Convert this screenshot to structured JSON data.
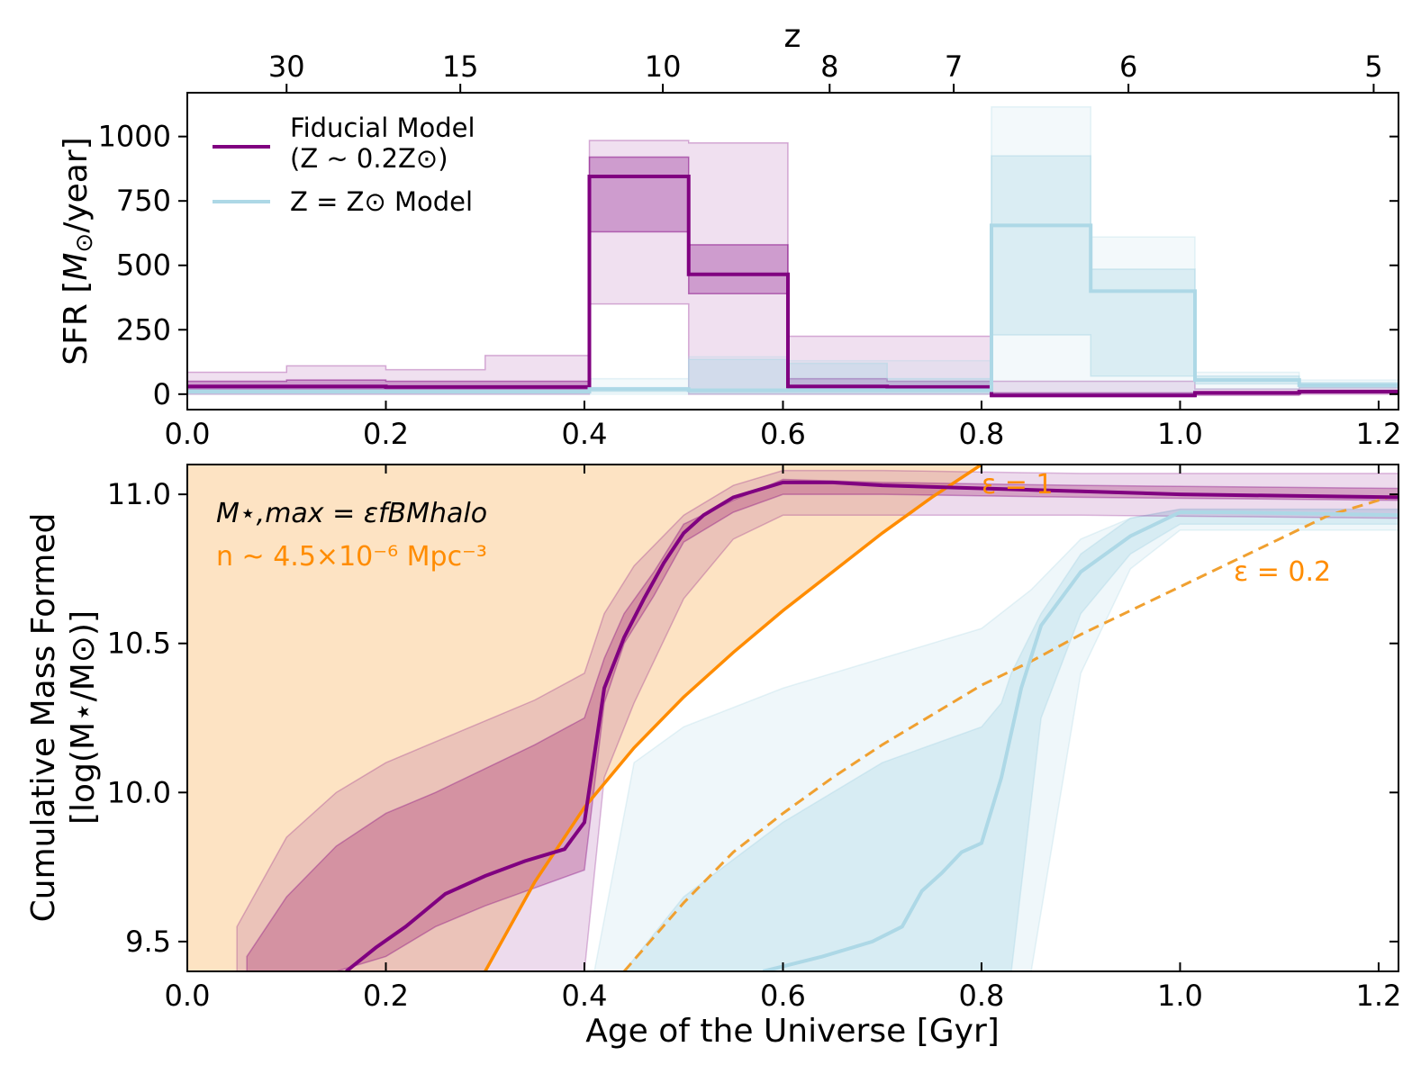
{
  "chart_data": [
    {
      "type": "line",
      "panel": "top",
      "ylabel": "SFR [M⊙/year]",
      "ylabel_parts": {
        "prefix": "SFR [",
        "var": "M",
        "sub": "⊙",
        "suffix": "/year]"
      },
      "xlim": [
        0.0,
        1.22
      ],
      "ylim": [
        -60,
        1170
      ],
      "x_ticks": [
        0.0,
        0.2,
        0.4,
        0.6,
        0.8,
        1.0,
        1.2
      ],
      "x_tick_labels": [
        "0.0",
        "0.2",
        "0.4",
        "0.6",
        "0.8",
        "1.0",
        "1.2"
      ],
      "y_ticks": [
        0,
        250,
        500,
        750,
        1000
      ],
      "y_tick_labels": [
        "0",
        "250",
        "500",
        "750",
        "1000"
      ],
      "top_axis": {
        "label": "z",
        "ticks_age_gyr": [
          0.1,
          0.275,
          0.479,
          0.647,
          0.772,
          0.948,
          1.195
        ],
        "tick_labels": [
          "30",
          "15",
          "10",
          "8",
          "7",
          "6",
          "5"
        ]
      },
      "legend": [
        {
          "label_line1": "Fiducial Model",
          "label_line2": "(Z ~ 0.2Z⊙)",
          "color": "#800080"
        },
        {
          "label_line1": "Z = Z⊙ Model",
          "color": "#add8e6"
        }
      ],
      "bin_edges": [
        0.0,
        0.1,
        0.2,
        0.3,
        0.405,
        0.505,
        0.605,
        0.705,
        0.81,
        0.91,
        1.015,
        1.12,
        1.22
      ],
      "series": [
        {
          "name": "Fiducial Model",
          "color": "#800080",
          "median": [
            30,
            30,
            28,
            28,
            845,
            465,
            30,
            28,
            -5,
            -5,
            5,
            10
          ],
          "inner_band": {
            "low": [
              20,
              20,
              18,
              18,
              630,
              390,
              20,
              18,
              -8,
              -8,
              0,
              5
            ],
            "high": [
              50,
              55,
              50,
              50,
              920,
              580,
              60,
              50,
              5,
              5,
              10,
              15
            ]
          },
          "outer_band": {
            "low": [
              0,
              0,
              0,
              0,
              350,
              0,
              0,
              0,
              -10,
              -10,
              -5,
              0
            ],
            "high": [
              85,
              110,
              95,
              150,
              985,
              975,
              225,
              225,
              50,
              50,
              20,
              25
            ]
          }
        },
        {
          "name": "Z = Z⊙ Model",
          "color": "#add8e6",
          "median": [
            10,
            10,
            10,
            10,
            20,
            15,
            15,
            15,
            655,
            400,
            55,
            35
          ],
          "inner_band": {
            "low": [
              5,
              5,
              5,
              5,
              10,
              5,
              5,
              5,
              230,
              70,
              40,
              25
            ],
            "high": [
              15,
              15,
              15,
              15,
              25,
              135,
              120,
              60,
              925,
              485,
              70,
              45
            ]
          },
          "outer_band": {
            "low": [
              0,
              0,
              0,
              0,
              0,
              0,
              0,
              0,
              0,
              0,
              20,
              10
            ],
            "high": [
              20,
              20,
              20,
              20,
              60,
              145,
              130,
              130,
              1115,
              610,
              85,
              55
            ]
          }
        }
      ]
    },
    {
      "type": "line",
      "panel": "bottom",
      "xlabel": "Age of the Universe [Gyr]",
      "ylabel_line1": "Cumulative Mass Formed",
      "ylabel_line2": "[log(M⋆/M⊙)]",
      "xlim": [
        0.0,
        1.22
      ],
      "ylim": [
        9.4,
        11.1
      ],
      "x_ticks": [
        0.0,
        0.2,
        0.4,
        0.6,
        0.8,
        1.0,
        1.2
      ],
      "x_tick_labels": [
        "0.0",
        "0.2",
        "0.4",
        "0.6",
        "0.8",
        "1.0",
        "1.2"
      ],
      "y_ticks": [
        9.5,
        10.0,
        10.5,
        11.0
      ],
      "y_tick_labels": [
        "9.5",
        "10.0",
        "10.5",
        "11.0"
      ],
      "annotations": {
        "formula": "M⋆,max = εfBMhalo",
        "density": "n ~ 4.5×10⁻⁶ Mpc⁻³",
        "eps1": "ε = 1",
        "eps02": "ε = 0.2"
      },
      "limit_curves": [
        {
          "name": "ε = 1",
          "style": "solid",
          "color": "#ff8c00",
          "x": [
            0.3,
            0.35,
            0.4,
            0.45,
            0.5,
            0.55,
            0.6,
            0.65,
            0.7,
            0.75,
            0.8
          ],
          "y": [
            9.4,
            9.7,
            9.95,
            10.15,
            10.32,
            10.47,
            10.61,
            10.74,
            10.87,
            10.99,
            11.1
          ]
        },
        {
          "name": "ε = 0.2",
          "style": "dashed",
          "color": "#f0a030",
          "x": [
            0.44,
            0.5,
            0.55,
            0.6,
            0.65,
            0.7,
            0.75,
            0.8,
            0.85,
            0.9,
            0.95,
            1.0,
            1.05,
            1.1,
            1.15,
            1.22
          ],
          "y": [
            9.4,
            9.63,
            9.8,
            9.93,
            10.05,
            10.16,
            10.26,
            10.36,
            10.44,
            10.53,
            10.61,
            10.69,
            10.77,
            10.85,
            10.93,
            11.0
          ]
        }
      ],
      "series": [
        {
          "name": "Fiducial Model",
          "color": "#800080",
          "x": [
            0.16,
            0.19,
            0.22,
            0.26,
            0.3,
            0.34,
            0.38,
            0.4,
            0.42,
            0.44,
            0.46,
            0.48,
            0.5,
            0.52,
            0.55,
            0.6,
            0.65,
            0.7,
            0.8,
            0.9,
            1.0,
            1.22
          ],
          "y": [
            9.4,
            9.48,
            9.55,
            9.66,
            9.72,
            9.77,
            9.81,
            9.9,
            10.35,
            10.52,
            10.65,
            10.77,
            10.87,
            10.93,
            10.99,
            11.04,
            11.04,
            11.03,
            11.02,
            11.01,
            11.0,
            10.99
          ],
          "inner_band": {
            "x": [
              0.06,
              0.1,
              0.15,
              0.2,
              0.25,
              0.3,
              0.35,
              0.4,
              0.42,
              0.44,
              0.47,
              0.5,
              0.55,
              0.6,
              0.7,
              0.9,
              1.22
            ],
            "low": [
              9.4,
              9.4,
              9.4,
              9.45,
              9.55,
              9.62,
              9.68,
              9.74,
              10.3,
              10.5,
              10.66,
              10.84,
              10.94,
              11.0,
              11.0,
              10.99,
              10.98
            ],
            "high": [
              9.45,
              9.65,
              9.82,
              9.93,
              10.0,
              10.08,
              10.16,
              10.25,
              10.45,
              10.6,
              10.74,
              10.9,
              10.98,
              11.05,
              11.04,
              11.03,
              11.02
            ]
          },
          "outer_band": {
            "x": [
              0.05,
              0.1,
              0.15,
              0.2,
              0.25,
              0.3,
              0.35,
              0.4,
              0.42,
              0.45,
              0.5,
              0.55,
              0.6,
              0.7,
              0.9,
              1.22
            ],
            "low": [
              9.4,
              9.4,
              9.4,
              9.4,
              9.4,
              9.4,
              9.4,
              9.4,
              10.05,
              10.3,
              10.65,
              10.85,
              10.93,
              10.93,
              10.93,
              10.92
            ],
            "high": [
              9.55,
              9.85,
              10.0,
              10.1,
              10.17,
              10.24,
              10.31,
              10.4,
              10.6,
              10.76,
              10.93,
              11.03,
              11.08,
              11.08,
              11.07,
              11.07
            ]
          }
        },
        {
          "name": "Z = Z⊙ Model",
          "color": "#add8e6",
          "x": [
            0.58,
            0.64,
            0.69,
            0.72,
            0.74,
            0.76,
            0.78,
            0.8,
            0.82,
            0.84,
            0.86,
            0.9,
            0.95,
            1.0,
            1.05,
            1.22
          ],
          "y": [
            9.4,
            9.45,
            9.5,
            9.55,
            9.67,
            9.73,
            9.8,
            9.83,
            10.05,
            10.35,
            10.56,
            10.74,
            10.86,
            10.94,
            10.94,
            10.93
          ],
          "inner_band": {
            "x": [
              0.44,
              0.5,
              0.6,
              0.7,
              0.8,
              0.82,
              0.83,
              0.86,
              0.9,
              0.95,
              1.0,
              1.22
            ],
            "low": [
              9.4,
              9.4,
              9.4,
              9.4,
              9.4,
              9.4,
              9.4,
              10.25,
              10.6,
              10.8,
              10.9,
              10.9
            ],
            "high": [
              9.4,
              9.65,
              9.9,
              10.1,
              10.22,
              10.3,
              10.4,
              10.6,
              10.8,
              10.92,
              10.95,
              10.95
            ]
          },
          "outer_band": {
            "x": [
              0.41,
              0.45,
              0.5,
              0.6,
              0.7,
              0.8,
              0.85,
              0.9,
              0.95,
              1.0,
              1.22
            ],
            "low": [
              9.4,
              9.4,
              9.4,
              9.4,
              9.4,
              9.4,
              9.4,
              10.4,
              10.75,
              10.88,
              10.88
            ],
            "high": [
              9.4,
              10.1,
              10.22,
              10.35,
              10.45,
              10.55,
              10.68,
              10.85,
              10.92,
              10.95,
              10.95
            ]
          }
        }
      ]
    }
  ]
}
